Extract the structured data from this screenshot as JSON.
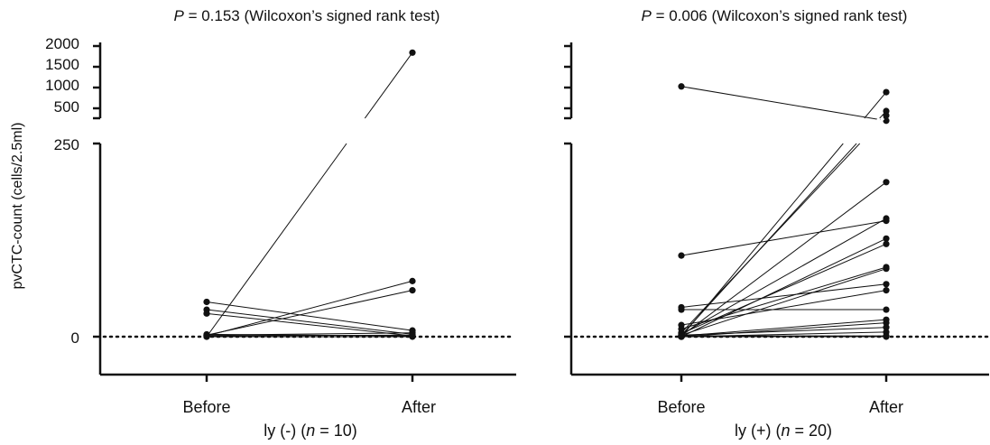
{
  "chart_data": [
    {
      "type": "scatter",
      "title": "P = 0.153 (Wilcoxon’s signed rank test)",
      "title_italic": "P",
      "title_rest": " = 0.153 (Wilcoxon’s signed rank test)",
      "ylabel": "pvCTC-count (cells/2.5ml)",
      "xlabel_prefix": "ly (-) (",
      "xlabel_n": "n",
      "xlabel_suffix": " = 10)",
      "categories": [
        "Before",
        "After"
      ],
      "y_broken_axis": true,
      "y_lower_ticks": [
        "250",
        "0"
      ],
      "y_upper_ticks": [
        "2000",
        "1500",
        "1000",
        "500"
      ],
      "ylim_lower": [
        -20,
        250
      ],
      "ylim_upper": [
        250,
        2000
      ],
      "reference_line": 0,
      "pairs": [
        {
          "before": 0,
          "after": 1850
        },
        {
          "before": 1,
          "after": 72
        },
        {
          "before": 2,
          "after": 60
        },
        {
          "before": 45,
          "after": 8
        },
        {
          "before": 35,
          "after": 3
        },
        {
          "before": 30,
          "after": 1
        },
        {
          "before": 2,
          "after": 5
        },
        {
          "before": 1,
          "after": 2
        },
        {
          "before": 0,
          "after": 0
        },
        {
          "before": 3,
          "after": 1
        }
      ]
    },
    {
      "type": "scatter",
      "title": "P = 0.006 (Wilcoxon’s signed rank test)",
      "title_italic": "P",
      "title_rest": " = 0.006 (Wilcoxon’s signed rank test)",
      "xlabel_prefix": "ly (+) (",
      "xlabel_n": "n",
      "xlabel_suffix": " = 20)",
      "categories": [
        "Before",
        "After"
      ],
      "y_broken_axis": true,
      "ylim_lower": [
        -20,
        250
      ],
      "ylim_upper": [
        250,
        2000
      ],
      "reference_line": 0,
      "pairs": [
        {
          "before": 1080,
          "after": 300
        },
        {
          "before": 105,
          "after": 150
        },
        {
          "before": 0,
          "after": 950
        },
        {
          "before": 2,
          "after": 520
        },
        {
          "before": 5,
          "after": 420
        },
        {
          "before": 1,
          "after": 200
        },
        {
          "before": 3,
          "after": 153
        },
        {
          "before": 0,
          "after": 127
        },
        {
          "before": 4,
          "after": 120
        },
        {
          "before": 10,
          "after": 90
        },
        {
          "before": 2,
          "after": 88
        },
        {
          "before": 38,
          "after": 68
        },
        {
          "before": 15,
          "after": 60
        },
        {
          "before": 35,
          "after": 35
        },
        {
          "before": 1,
          "after": 22
        },
        {
          "before": 0,
          "after": 18
        },
        {
          "before": 2,
          "after": 12
        },
        {
          "before": 0,
          "after": 6
        },
        {
          "before": 1,
          "after": 1
        },
        {
          "before": 0,
          "after": 0
        }
      ]
    }
  ]
}
